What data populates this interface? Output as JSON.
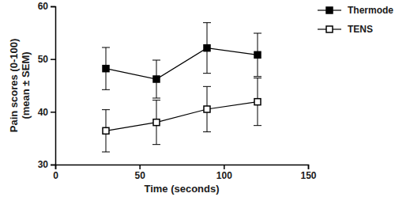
{
  "chart_data": {
    "type": "line",
    "x_label": "Time (seconds)",
    "y_label": [
      "Pain scores (0-100)",
      "(mean ± SEM)"
    ],
    "xlim": [
      0,
      150
    ],
    "xticks": [
      0,
      50,
      100,
      150
    ],
    "ylim": [
      30,
      60
    ],
    "yticks": [
      30,
      40,
      50,
      60
    ],
    "legend": "right",
    "series": [
      {
        "name": "Thermode",
        "color": "#000000",
        "marker": "square",
        "line_style": "solid",
        "x": [
          30,
          60,
          90,
          120
        ],
        "values": [
          48.2,
          46.2,
          52.1,
          50.8
        ],
        "errors": [
          4.0,
          3.6,
          4.8,
          4.1
        ]
      },
      {
        "name": "TENS",
        "color": "#000000",
        "marker": "open-square",
        "line_style": "solid",
        "x": [
          30,
          60,
          90,
          120
        ],
        "values": [
          36.4,
          38.0,
          40.5,
          41.9
        ],
        "errors": [
          4.0,
          4.2,
          4.3,
          4.5
        ]
      }
    ]
  }
}
